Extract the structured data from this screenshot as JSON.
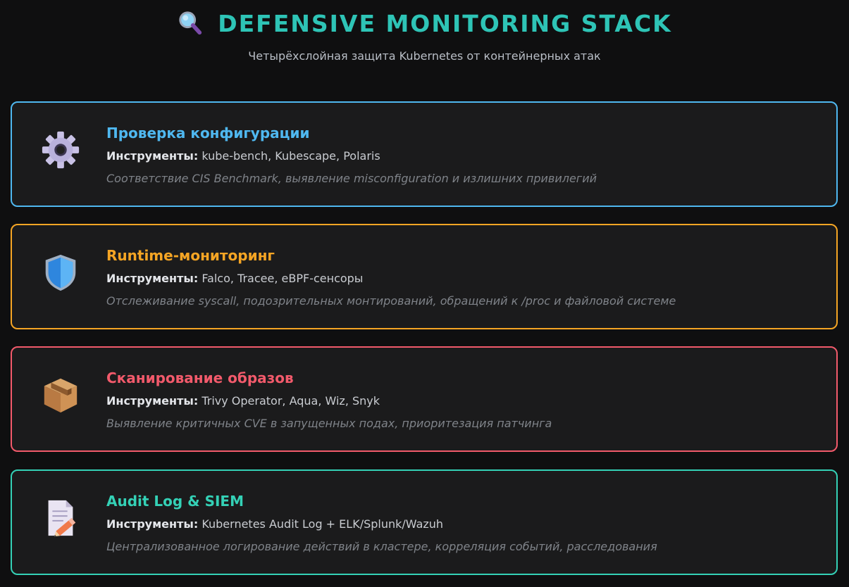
{
  "header": {
    "title_icon": "magnifier-icon",
    "title": "DEFENSIVE MONITORING STACK",
    "subtitle": "Четырёхслойная защита Kubernetes от контейнерных атак"
  },
  "colors": {
    "accent_teal": "#2ec4b6",
    "blue": "#4fb8f0",
    "orange": "#f5a524",
    "red": "#f25a6b",
    "teal": "#34d1b6",
    "background": "#0f0f10",
    "card_bg": "#1b1b1c"
  },
  "cards": [
    {
      "icon": "gear-icon",
      "title": "Проверка конфигурации",
      "tools_label": "Инструменты:",
      "tools": "kube-bench, Kubescape, Polaris",
      "description": "Соответствие CIS Benchmark, выявление misconfiguration и излишних привилегий",
      "color": "#4fb8f0"
    },
    {
      "icon": "shield-icon",
      "title": "Runtime-мониторинг",
      "tools_label": "Инструменты:",
      "tools": "Falco, Tracee, eBPF-сенсоры",
      "description": "Отслеживание syscall, подозрительных монтирований, обращений к /proc и файловой системе",
      "color": "#f5a524"
    },
    {
      "icon": "package-icon",
      "title": "Сканирование образов",
      "tools_label": "Инструменты:",
      "tools": "Trivy Operator, Aqua, Wiz, Snyk",
      "description": "Выявление критичных CVE в запущенных подах, приоритезация патчинга",
      "color": "#f25a6b"
    },
    {
      "icon": "document-pencil-icon",
      "title": "Audit Log & SIEM",
      "tools_label": "Инструменты:",
      "tools": "Kubernetes Audit Log + ELK/Splunk/Wazuh",
      "description": "Централизованное логирование действий в кластере, корреляция событий, расследования",
      "color": "#34d1b6"
    }
  ]
}
